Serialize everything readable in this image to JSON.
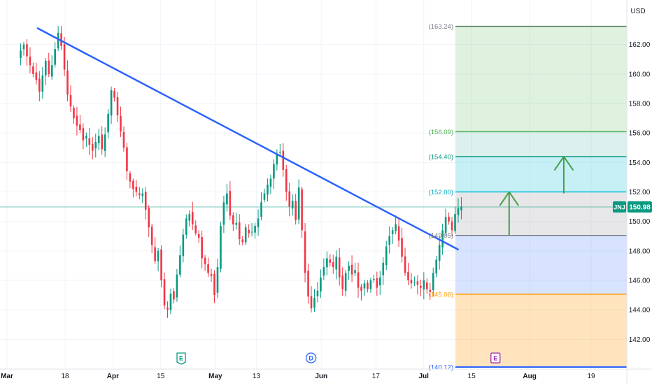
{
  "currency_label": "USD",
  "symbol_badge": {
    "text": "JNJ",
    "value": "150.98",
    "color": "#089981"
  },
  "chart_data": {
    "type": "candlestick",
    "y_axis": {
      "ticks": [
        "142.00",
        "144.00",
        "146.00",
        "148.00",
        "150.00",
        "152.00",
        "154.00",
        "156.00",
        "158.00",
        "160.00",
        "162.00"
      ],
      "range": [
        140.12,
        163.6
      ]
    },
    "x_axis": {
      "ticks": [
        {
          "label": "Mar",
          "day": 0
        },
        {
          "label": "18",
          "day": 17
        },
        {
          "label": "Apr",
          "day": 31
        },
        {
          "label": "15",
          "day": 45
        },
        {
          "label": "May",
          "day": 61
        },
        {
          "label": "13",
          "day": 73
        },
        {
          "label": "Jun",
          "day": 92
        },
        {
          "label": "17",
          "day": 108
        },
        {
          "label": "Jul",
          "day": 122
        },
        {
          "label": "15",
          "day": 136
        },
        {
          "label": "Aug",
          "day": 153
        },
        {
          "label": "19",
          "day": 171
        }
      ]
    },
    "current_price": 150.98,
    "colors": {
      "up": "#089981",
      "down": "#f23645"
    },
    "candles_close": [
      161.6,
      162.0,
      161.2,
      160.6,
      160.0,
      159.6,
      158.8,
      159.9,
      160.9,
      160.0,
      160.6,
      161.7,
      162.8,
      161.9,
      160.3,
      158.6,
      157.8,
      157.0,
      156.5,
      156.2,
      155.5,
      155.8,
      155.2,
      154.8,
      155.4,
      155.8,
      154.9,
      155.9,
      157.3,
      158.9,
      158.4,
      157.2,
      156.1,
      155.0,
      153.4,
      152.7,
      152.2,
      152.0,
      151.8,
      151.9,
      150.8,
      149.6,
      148.4,
      147.3,
      148.0,
      146.0,
      144.3,
      144.0,
      145.1,
      144.7,
      146.4,
      147.7,
      149.1,
      150.2,
      150.5,
      149.8,
      149.2,
      148.9,
      147.5,
      147.1,
      146.5,
      146.3,
      145.0,
      146.9,
      149.7,
      151.3,
      151.9,
      150.4,
      149.8,
      149.9,
      148.8,
      148.6,
      149.6,
      149.2,
      149.3,
      149.7,
      150.2,
      151.3,
      151.9,
      152.5,
      152.9,
      153.9,
      154.6,
      154.7,
      153.5,
      152.0,
      151.0,
      151.4,
      150.1,
      152.3,
      149.4,
      146.5,
      144.9,
      144.1,
      144.8,
      145.3,
      146.2,
      146.9,
      147.5,
      147.2,
      146.9,
      147.6,
      146.2,
      145.4,
      146.5,
      147.0,
      146.4,
      146.7,
      145.5,
      145.3,
      145.8,
      145.4,
      146.0,
      146.1,
      145.5,
      146.2,
      147.2,
      148.3,
      149.0,
      149.4,
      149.8,
      148.7,
      147.6,
      146.5,
      146.0,
      145.8,
      145.9,
      145.7,
      145.5,
      146.0,
      145.4,
      145.2,
      146.5,
      147.4,
      148.4,
      149.4,
      150.3,
      150.0,
      149.4,
      150.5,
      150.9,
      151.0
    ],
    "trendline": {
      "color": "#2962ff",
      "start": {
        "day": 9,
        "price": 163.1
      },
      "end": {
        "day": 132,
        "price": 148.1
      }
    },
    "levels": [
      {
        "label": "(163.24)",
        "price": 163.24,
        "color": "#4c7a5a",
        "label_color": "#787b86"
      },
      {
        "label": "(156.09)",
        "price": 156.09,
        "color": "#4caf50",
        "label_color": "#4caf50"
      },
      {
        "label": "(154.40)",
        "price": 154.4,
        "color": "#089981",
        "label_color": "#089981"
      },
      {
        "label": "(152.00)",
        "price": 152.0,
        "color": "#00bcd4",
        "label_color": "#00acc1"
      },
      {
        "label": "(149.05)",
        "price": 149.05,
        "color": "#787b86",
        "label_color": "#787b86"
      },
      {
        "label": "(145.06)",
        "price": 145.06,
        "color": "#ff9800",
        "label_color": "#ff9800"
      },
      {
        "label": "(140.12)",
        "price": 140.12,
        "color": "#2962ff",
        "label_color": "#2962ff"
      }
    ],
    "zones": [
      {
        "from": 156.09,
        "to": 163.24,
        "color": "#4caf50",
        "opacity": 0.18
      },
      {
        "from": 154.4,
        "to": 156.09,
        "color": "#089981",
        "opacity": 0.14
      },
      {
        "from": 152.0,
        "to": 154.4,
        "color": "#00bcd4",
        "opacity": 0.22
      },
      {
        "from": 149.05,
        "to": 152.0,
        "color": "#787b86",
        "opacity": 0.18
      },
      {
        "from": 145.06,
        "to": 149.05,
        "color": "#2962ff",
        "opacity": 0.18
      },
      {
        "from": 140.12,
        "to": 145.06,
        "color": "#ff9800",
        "opacity": 0.26
      }
    ],
    "arrows": [
      {
        "day": 147,
        "from": 149.05,
        "to": 152.0,
        "color": "#43a047"
      },
      {
        "day": 163,
        "from": 151.9,
        "to": 154.4,
        "color": "#43a047"
      }
    ],
    "event_markers": [
      {
        "label": "E",
        "day": 51,
        "shape": "flag",
        "color": "#089981"
      },
      {
        "label": "D",
        "day": 89,
        "shape": "circle",
        "color": "#2962ff"
      },
      {
        "label": "E",
        "day": 143,
        "shape": "square",
        "color": "#9c27b0"
      }
    ]
  }
}
